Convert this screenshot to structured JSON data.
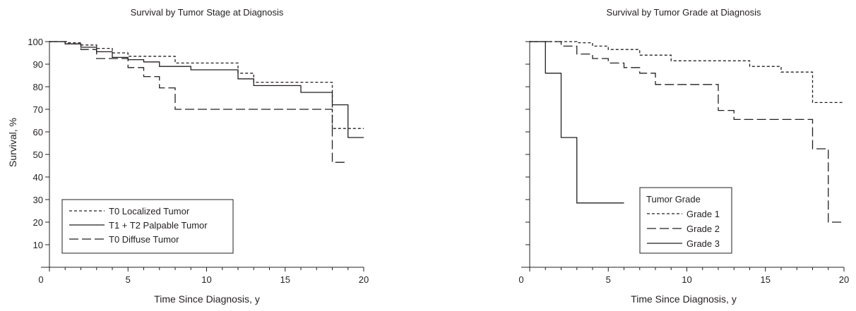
{
  "chart_data": [
    {
      "type": "line",
      "step": true,
      "title": "Survival by Tumor Stage at Diagnosis",
      "xlabel": "Time Since Diagnosis, y",
      "ylabel": "Survival, %",
      "xlim": [
        0,
        20
      ],
      "ylim": [
        0,
        100
      ],
      "xticks": [
        0,
        5,
        10,
        15,
        20
      ],
      "yticks": [
        10,
        20,
        30,
        40,
        50,
        60,
        70,
        80,
        90,
        100
      ],
      "legend_title": "",
      "legend_position": "bottom-left",
      "series": [
        {
          "name": "T0 Localized Tumor",
          "dash": "short-dash",
          "x": [
            0,
            1.2,
            2,
            3,
            4,
            5,
            8,
            12,
            13,
            18,
            19,
            20
          ],
          "y": [
            100,
            99.5,
            98.5,
            97,
            95,
            93.5,
            90.5,
            86,
            82,
            61.5,
            61.5,
            61.5
          ]
        },
        {
          "name": "T1 + T2 Palpable Tumor",
          "dash": "solid",
          "x": [
            0,
            1,
            2,
            3,
            4,
            5,
            6,
            7,
            9,
            12,
            13,
            16,
            18,
            19,
            20
          ],
          "y": [
            100,
            99,
            97.5,
            95.5,
            93,
            92,
            91,
            89,
            87.5,
            83.5,
            80.5,
            77.5,
            72,
            57.5,
            57.5
          ]
        },
        {
          "name": "T0 Diffuse Tumor",
          "dash": "long-dash",
          "x": [
            0,
            1,
            2,
            3,
            5,
            6,
            7,
            8,
            18,
            19
          ],
          "y": [
            100,
            99,
            96.5,
            92.5,
            88.5,
            84.5,
            79.5,
            70,
            46.5,
            46.5
          ]
        }
      ]
    },
    {
      "type": "line",
      "step": true,
      "title": "Survival by Tumor Grade at Diagnosis",
      "xlabel": "Time Since Diagnosis, y",
      "ylabel": "",
      "xlim": [
        0,
        20
      ],
      "ylim": [
        0,
        100
      ],
      "xticks": [
        0,
        5,
        10,
        15,
        20
      ],
      "yticks": [
        10,
        20,
        30,
        40,
        50,
        60,
        70,
        80,
        90,
        100
      ],
      "legend_title": "Tumor Grade",
      "legend_position": "bottom-center",
      "series": [
        {
          "name": "Grade 1",
          "dash": "short-dash",
          "x": [
            0,
            3,
            4,
            5,
            7,
            9,
            14,
            16,
            18,
            20
          ],
          "y": [
            100,
            99.5,
            98,
            96.5,
            94,
            91.5,
            89,
            86.5,
            73,
            73
          ]
        },
        {
          "name": "Grade 2",
          "dash": "long-dash",
          "x": [
            0,
            1,
            2,
            3,
            4,
            5,
            6,
            7,
            8,
            12,
            13,
            18,
            19,
            20
          ],
          "y": [
            100,
            100,
            98,
            94.5,
            92.5,
            90.5,
            88.5,
            86,
            81,
            69.5,
            65.5,
            52.5,
            20,
            20
          ]
        },
        {
          "name": "Grade 3",
          "dash": "solid",
          "x": [
            0,
            1,
            2,
            3,
            6
          ],
          "y": [
            100,
            86,
            57.5,
            28.5,
            28.5
          ]
        }
      ]
    }
  ]
}
